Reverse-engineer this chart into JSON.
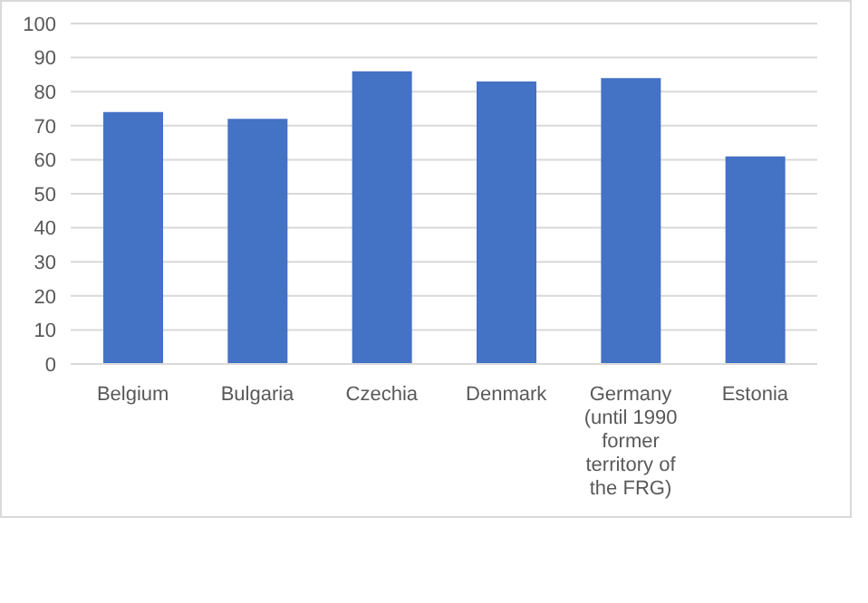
{
  "chart_data": {
    "type": "bar",
    "categories": [
      "Belgium",
      "Bulgaria",
      "Czechia",
      "Denmark",
      "Germany (until 1990 former territory of the FRG)",
      "Estonia"
    ],
    "values": [
      74,
      72,
      86,
      83,
      84,
      61
    ],
    "color": "#4472c4",
    "ylim": [
      0,
      100
    ],
    "yticks": [
      0,
      10,
      20,
      30,
      40,
      50,
      60,
      70,
      80,
      90,
      100
    ],
    "grid": "y"
  }
}
